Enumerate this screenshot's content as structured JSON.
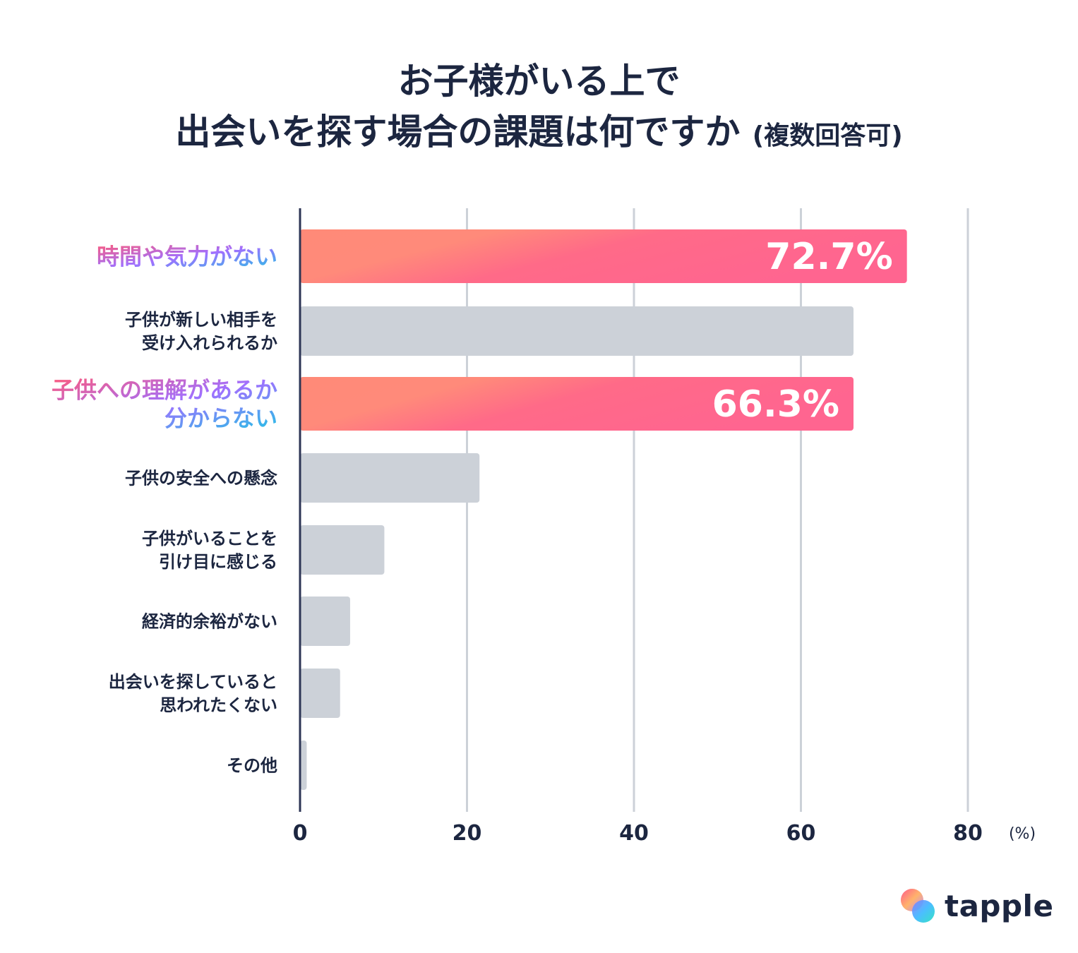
{
  "title": {
    "line1": "お子様がいる上で",
    "line2": "出会いを探す場合の課題は何ですか",
    "line2_suffix": "(複数回答可)"
  },
  "chart_data": {
    "type": "bar",
    "orientation": "horizontal",
    "title": "お子様がいる上で 出会いを探す場合の課題は何ですか (複数回答可)",
    "categories": [
      [
        "時間や気力がない"
      ],
      [
        "子供が新しい相手を",
        "受け入れられるか"
      ],
      [
        "子供への理解があるか",
        "分からない"
      ],
      [
        "子供の安全への懸念"
      ],
      [
        "子供がいることを",
        "引け目に感じる"
      ],
      [
        "経済的余裕がない"
      ],
      [
        "出会いを探していると",
        "思われたくない"
      ],
      [
        "その他"
      ]
    ],
    "values": [
      72.7,
      66.3,
      66.3,
      21.5,
      10.1,
      6.0,
      4.8,
      0.8
    ],
    "highlighted": [
      true,
      false,
      true,
      false,
      false,
      false,
      false,
      false
    ],
    "value_labels": [
      "72.7%",
      "",
      "66.3%",
      "",
      "",
      "",
      "",
      ""
    ],
    "xlim": [
      0,
      80
    ],
    "xticks": [
      0,
      20,
      40,
      60,
      80
    ],
    "xunit": "(%)",
    "grid": true
  },
  "colors": {
    "title": "#1c2640",
    "bar_gray": "#ccd1d8",
    "bar_highlight_start": "#ff8a78",
    "bar_highlight_end": "#ff6590",
    "grid": "#ccd1d8",
    "axis": "#2d3555",
    "label_gradient_start": "#ff5a7a",
    "label_gradient_mid": "#a070ff",
    "label_gradient_end": "#22c3e6"
  },
  "logo": {
    "text": "tapple",
    "icon": "tapple-logo-icon"
  }
}
